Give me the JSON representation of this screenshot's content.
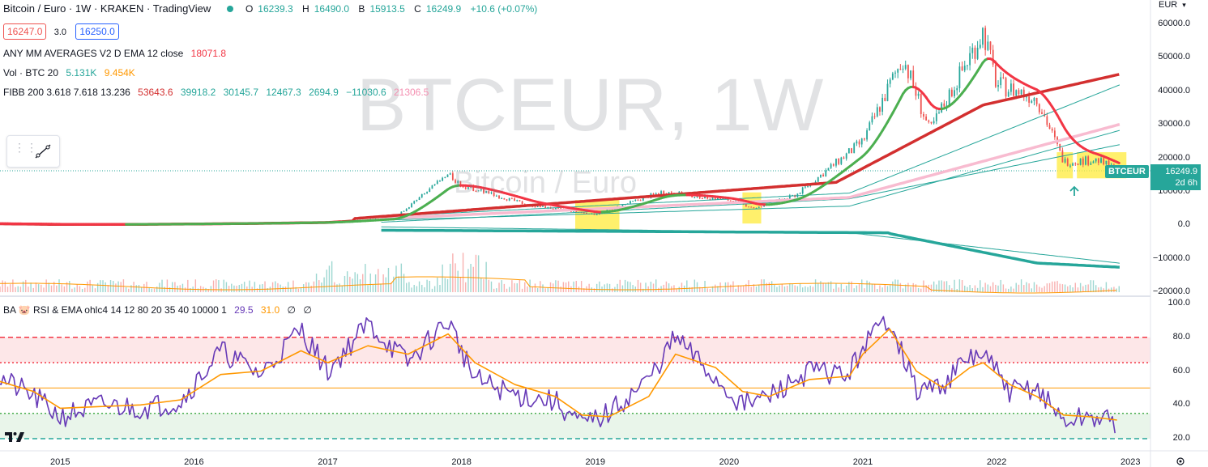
{
  "header": {
    "title": "Bitcoin / Euro · 1W · KRAKEN · TradingView",
    "ohlc": {
      "o_label": "O",
      "o": "16239.3",
      "h_label": "H",
      "h": "16490.0",
      "l_label": "B",
      "l": "15913.5",
      "c_label": "C",
      "c": "16249.9",
      "change": "+10.6 (+0.07%)"
    },
    "sell": "16247.0",
    "spread": "3.0",
    "buy": "16250.0"
  },
  "indicators": {
    "ma": {
      "label": "ANY MM AVERAGES V2 D EMA 12 close",
      "value": "18071.8"
    },
    "vol": {
      "label": "Vol · BTC 20",
      "value1": "5.131K",
      "value2": "9.454K"
    },
    "fibb": {
      "label": "FIBB 200 3.618 7.618 13.236",
      "values": [
        "53643.6",
        "39918.2",
        "30145.7",
        "12467.3",
        "2694.9",
        "−11030.6",
        "21306.5"
      ]
    },
    "rsi": {
      "label": "BA 🐷 RSI & EMA ohlc4 14 12 80 20 35 40 10000 1",
      "v1": "29.5",
      "v2": "31.0",
      "v3": "∅",
      "v4": "∅"
    }
  },
  "watermark": {
    "big": "BTCEUR, 1W",
    "small": "Bitcoin / Euro"
  },
  "price_scale": {
    "currency": "EUR",
    "ticks": [
      "60000.0",
      "50000.0",
      "40000.0",
      "30000.0",
      "20000.0",
      "10000.0",
      "0.0",
      "−10000.0",
      "−20000.0"
    ]
  },
  "rsi_scale": {
    "ticks": [
      "100.0",
      "80.0",
      "60.0",
      "40.0",
      "20.0"
    ]
  },
  "price_tag": {
    "symbol": "BTCEUR",
    "price": "16249.9",
    "countdown": "2d 6h"
  },
  "x_axis": {
    "ticks": [
      "2015",
      "2016",
      "2017",
      "2018",
      "2019",
      "2020",
      "2021",
      "2022",
      "2023"
    ]
  },
  "colors": {
    "up": "#26a69a",
    "down": "#ef5350",
    "ema_green": "#4caf50",
    "ema_red": "#f23645",
    "ma200": "#d32f2f",
    "pink": "#f8bbd0",
    "teal": "#26a69a",
    "rsi": "#673ab7",
    "rsi_ema": "#ff9800",
    "highlight": "#ffeb3b"
  },
  "chart_data": [
    {
      "type": "line",
      "title": "Bitcoin / Euro · 1W · KRAKEN",
      "x": [
        2014.5,
        2015.0,
        2015.5,
        2016.0,
        2016.5,
        2017.0,
        2017.5,
        2017.9,
        2018.0,
        2018.5,
        2019.0,
        2019.5,
        2020.0,
        2020.2,
        2020.5,
        2021.0,
        2021.3,
        2021.5,
        2021.9,
        2022.0,
        2022.3,
        2022.5,
        2022.75,
        2022.9
      ],
      "series": [
        {
          "values": [
            500,
            250,
            250,
            400,
            600,
            900,
            2200,
            15000,
            12000,
            6000,
            3200,
            10000,
            7500,
            5000,
            9000,
            25000,
            50000,
            28000,
            58000,
            42000,
            38000,
            19000,
            19500,
            16250
          ]
        }
      ],
      "ylim": [
        -20000,
        62000
      ]
    },
    {
      "type": "line",
      "ylim": [
        15,
        100
      ],
      "x": [
        2014.5,
        2014.8,
        2015.0,
        2015.3,
        2015.6,
        2015.9,
        2016.2,
        2016.5,
        2016.8,
        2017.0,
        2017.3,
        2017.6,
        2017.9,
        2018.1,
        2018.4,
        2018.7,
        2018.9,
        2019.1,
        2019.4,
        2019.6,
        2019.9,
        2020.1,
        2020.3,
        2020.6,
        2020.9,
        2021.0,
        2021.2,
        2021.4,
        2021.6,
        2021.8,
        2021.9,
        2022.1,
        2022.3,
        2022.5,
        2022.7,
        2022.9
      ],
      "series": [
        {
          "name": "RSI",
          "values": [
            58,
            45,
            33,
            40,
            38,
            42,
            72,
            58,
            85,
            60,
            88,
            65,
            90,
            55,
            46,
            42,
            28,
            35,
            55,
            80,
            55,
            40,
            45,
            60,
            58,
            75,
            92,
            48,
            52,
            68,
            70,
            48,
            50,
            30,
            33,
            29.5
          ]
        },
        {
          "name": "EMA",
          "values": [
            55,
            48,
            38,
            39,
            40,
            43,
            58,
            60,
            72,
            65,
            75,
            70,
            82,
            65,
            52,
            45,
            34,
            33,
            45,
            70,
            62,
            48,
            45,
            55,
            57,
            70,
            85,
            60,
            50,
            62,
            65,
            52,
            45,
            34,
            33,
            31
          ]
        }
      ],
      "hlines": [
        80,
        65,
        50,
        35,
        20
      ]
    }
  ]
}
